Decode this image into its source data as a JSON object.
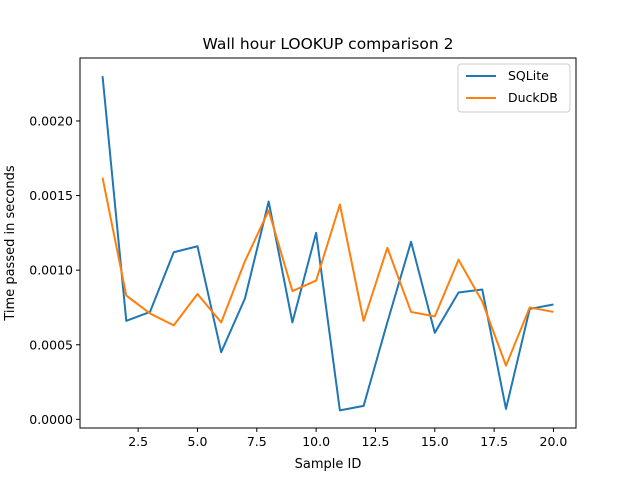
{
  "chart_data": {
    "type": "line",
    "title": "Wall hour LOOKUP comparison 2",
    "xlabel": "Sample ID",
    "ylabel": "Time passed in seconds",
    "xlim": [
      0.05,
      20.95
    ],
    "ylim": [
      -5.8e-05,
      0.002422
    ],
    "xticks": [
      2.5,
      5.0,
      7.5,
      10.0,
      12.5,
      15.0,
      17.5,
      20.0
    ],
    "xtick_labels": [
      "2.5",
      "5.0",
      "7.5",
      "10.0",
      "12.5",
      "15.0",
      "17.5",
      "20.0"
    ],
    "yticks": [
      0.0,
      0.0005,
      0.001,
      0.0015,
      0.002
    ],
    "ytick_labels": [
      "0.0000",
      "0.0005",
      "0.0010",
      "0.0015",
      "0.0020"
    ],
    "grid": false,
    "legend_position": "top-right",
    "x": [
      1,
      2,
      3,
      4,
      5,
      6,
      7,
      8,
      9,
      10,
      11,
      12,
      13,
      14,
      15,
      16,
      17,
      18,
      19,
      20
    ],
    "series": [
      {
        "name": "SQLite",
        "color": "#1f77b4",
        "values": [
          0.0023,
          0.00066,
          0.00072,
          0.00112,
          0.00116,
          0.00045,
          0.00081,
          0.00146,
          0.00065,
          0.00125,
          6e-05,
          9e-05,
          0.00065,
          0.00119,
          0.00058,
          0.00085,
          0.00087,
          7e-05,
          0.00074,
          0.00077
        ]
      },
      {
        "name": "DuckDB",
        "color": "#ff7f0e",
        "values": [
          0.00162,
          0.00083,
          0.00071,
          0.00063,
          0.00084,
          0.00065,
          0.00106,
          0.0014,
          0.00086,
          0.00093,
          0.00144,
          0.00066,
          0.00115,
          0.00072,
          0.00069,
          0.00107,
          0.00079,
          0.00036,
          0.00075,
          0.00072
        ]
      }
    ]
  }
}
